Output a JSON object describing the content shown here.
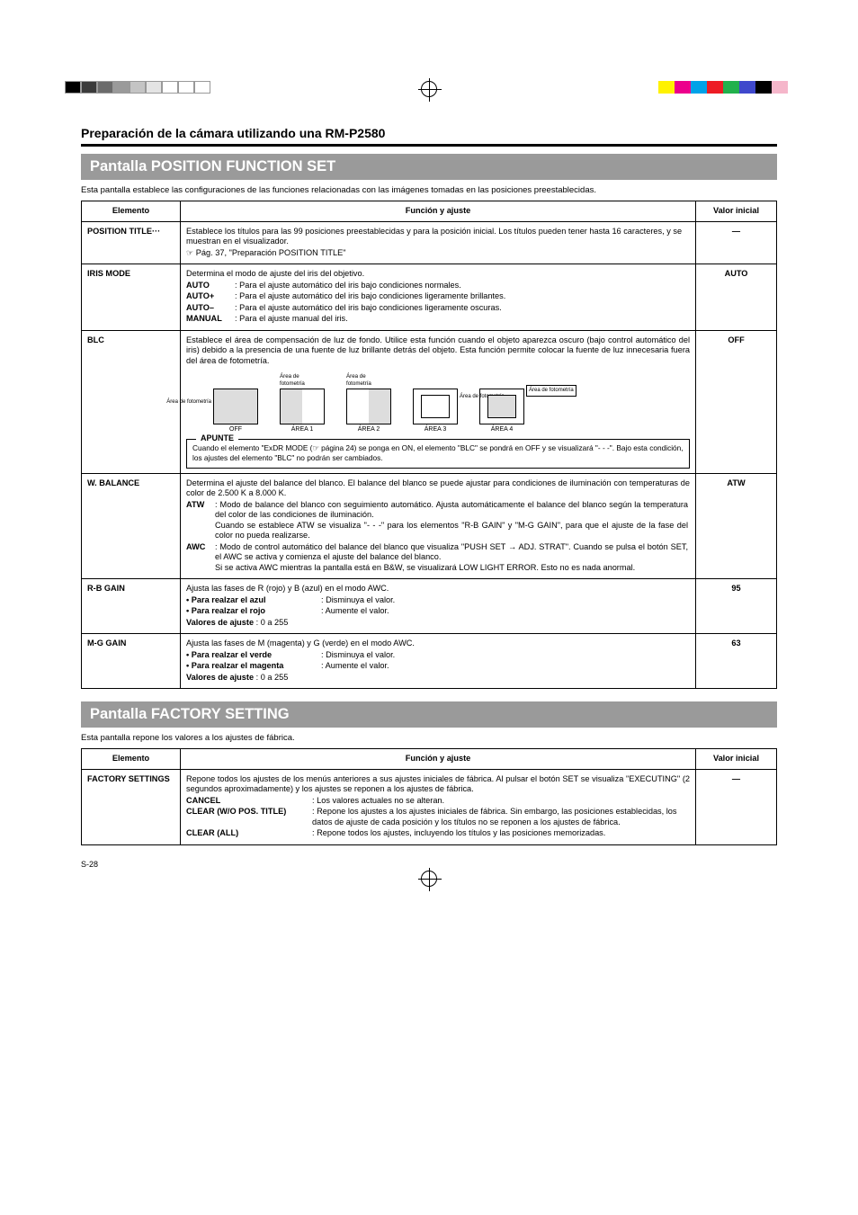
{
  "printmarks": {
    "left_colors": [
      "#000000",
      "#3a3a3a",
      "#6b6b6b",
      "#9a9a9a",
      "#c4c4c4",
      "#e4e4e4",
      "#ffffff",
      "#ffffff",
      "#ffffff"
    ],
    "right_colors": [
      "#fff200",
      "#ec008c",
      "#00a2e8",
      "#ed1c24",
      "#22b14c",
      "#3f48cc",
      "#000000",
      "#f5b6ca",
      "#ffffff"
    ]
  },
  "page_number": "S-28",
  "header_title": "Preparación de la cámara utilizando una RM-P2580",
  "section1": {
    "bar": "Pantalla POSITION FUNCTION SET",
    "intro": "Esta pantalla establece las configuraciones de las funciones relacionadas con las imágenes tomadas en las posiciones preestablecidas.",
    "th_el": "Elemento",
    "th_fn": "Función y ajuste",
    "th_val": "Valor inicial"
  },
  "rows": {
    "pos_title": {
      "el": "POSITION TITLE···",
      "fn_l1": "Establece los títulos para las 99 posiciones preestablecidas y para la posición inicial. Los títulos pueden tener hasta 16 caracteres, y se muestran en el visualizador.",
      "fn_l2": "☞ Pág. 37, \"Preparación POSITION TITLE\"",
      "val": "—"
    },
    "iris": {
      "el": "IRIS MODE",
      "l1": "Determina el modo de ajuste del iris del objetivo.",
      "auto_k": "AUTO",
      "auto_v": ": Para el ajuste automático del iris bajo condiciones normales.",
      "autop_k": "AUTO+",
      "autop_v": ": Para el ajuste automático del iris bajo condiciones ligeramente brillantes.",
      "autom_k": "AUTO–",
      "autom_v": ": Para el ajuste automático del iris bajo condiciones ligeramente oscuras.",
      "man_k": "MANUAL",
      "man_v": ": Para el ajuste manual del iris.",
      "val": "AUTO"
    },
    "blc": {
      "el": "BLC",
      "p1": "Establece el área de compensación de luz de fondo. Utilice esta función cuando el objeto aparezca oscuro (bajo control automático del iris) debido a la presencia de una fuente de luz brillante detrás del objeto. Esta función permite colocar la fuente de luz innecesaria fuera del área de fotometría.",
      "diag_top_l": "Área de fotometría",
      "diag_top_r": "Área de fotometría",
      "side_l": "Área de fotometría",
      "side_r": "Área de fotometría",
      "side_far": "Área de fotometría",
      "lbl_off": "OFF",
      "lbl_a1": "ÁREA 1",
      "lbl_a2": "ÁREA 2",
      "lbl_a3": "ÁREA 3",
      "lbl_a4": "ÁREA 4",
      "apunte_title": "APUNTE",
      "apunte_text": "Cuando el elemento \"ExDR MODE (☞ página 24) se ponga en ON, el elemento \"BLC\" se pondrá en OFF y se visualizará \"- - -\". Bajo esta condición, los ajustes del elemento \"BLC\" no podrán ser cambiados.",
      "val": "OFF"
    },
    "wb": {
      "el": "W. BALANCE",
      "l1": "Determina el ajuste del balance del blanco. El balance del blanco se puede ajustar para condiciones de iluminación con temperaturas de color de 2.500 K a 8.000 K.",
      "atw_k": "ATW",
      "atw_v1": ": Modo de balance del blanco con seguimiento automático. Ajusta automáticamente el balance del blanco según la temperatura del color de las condiciones de iluminación.",
      "atw_v2": "Cuando se establece ATW se visualiza \"- - -\" para los elementos \"R-B GAIN\" y \"M-G GAIN\", para que el ajuste de la fase del color no pueda realizarse.",
      "awc_k": "AWC",
      "awc_v1": ": Modo de control automático del balance del blanco que visualiza \"PUSH SET → ADJ. STRAT\". Cuando se pulsa el botón SET, el AWC se activa y comienza el ajuste del balance del blanco.",
      "awc_v2": "Si se activa AWC mientras la pantalla está en B&W, se visualizará LOW LIGHT ERROR. Esto no es nada anormal.",
      "val": "ATW"
    },
    "rb": {
      "el": "R-B GAIN",
      "l1": "Ajusta las fases de R (rojo) y B (azul) en el modo AWC.",
      "l2a": "• Para realzar el azul",
      "l2b": ": Disminuya el valor.",
      "l3a": "• Para realzar el rojo",
      "l3b": ": Aumente el valor.",
      "l4a": "Valores de ajuste",
      "l4b": " : 0 a 255",
      "val": "95"
    },
    "mg": {
      "el": "M-G GAIN",
      "l1": "Ajusta las fases de M (magenta) y G (verde) en el modo AWC.",
      "l2a": "• Para realzar el verde",
      "l2b": ": Disminuya el valor.",
      "l3a": "• Para realzar el magenta",
      "l3b": ": Aumente el valor.",
      "l4a": "Valores de ajuste",
      "l4b": " : 0 a 255",
      "val": "63"
    }
  },
  "section2": {
    "bar": "Pantalla FACTORY SETTING",
    "intro": "Esta pantalla repone los valores a los ajustes de fábrica.",
    "th_el": "Elemento",
    "th_fn": "Función y ajuste",
    "th_val": "Valor inicial"
  },
  "factory": {
    "el": "FACTORY SETTINGS",
    "l1": "Repone todos los ajustes de los menús anteriores a sus ajustes iniciales de fábrica. Al pulsar el botón SET se visualiza \"EXECUTING\" (2 segundos aproximadamente) y los ajustes se reponen a los ajustes de fábrica.",
    "cancel_k": "CANCEL",
    "cancel_v": ": Los valores actuales no se alteran.",
    "clearwo_k": "CLEAR (W/O POS. TITLE)",
    "clearwo_v": ": Repone los ajustes a los ajustes iniciales de fábrica. Sin embargo, las posiciones establecidas, los datos de ajuste de cada posición y los títulos no se reponen a los ajustes de fábrica.",
    "clearall_k": "CLEAR (ALL)",
    "clearall_v": ": Repone todos los ajustes, incluyendo los títulos y las posiciones memorizadas.",
    "val": "—"
  }
}
